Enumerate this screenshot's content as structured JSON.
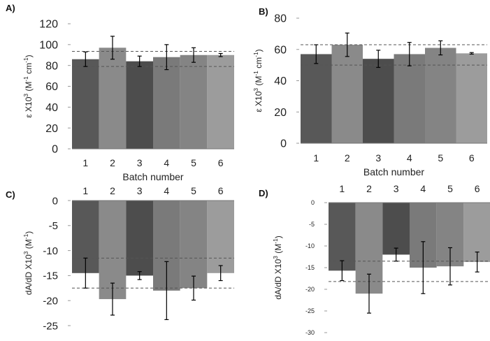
{
  "chart_data": [
    {
      "panel_label": "A)",
      "type": "bar",
      "categories": [
        "1",
        "2",
        "3",
        "4",
        "5",
        "6"
      ],
      "values": [
        86,
        97,
        84,
        88,
        90,
        90
      ],
      "errors": [
        7,
        11,
        5,
        12,
        7,
        1.5
      ],
      "ylabel_prefix": "ε X10",
      "ylabel_sup1": "3",
      "ylabel_mid": " (M",
      "ylabel_sup2": "-1",
      "ylabel_mid2": " cm",
      "ylabel_sup3": "-1",
      "ylabel_suffix": ")",
      "xlabel": "Batch number",
      "ylim": [
        0,
        120
      ],
      "yticks": [
        "0",
        "20",
        "40",
        "60",
        "80",
        "100",
        "120"
      ],
      "reference_lines": [
        93.5,
        79
      ],
      "bar_colors": [
        "#585858",
        "#8a8a8a",
        "#4d4d4d",
        "#7a7a7a",
        "#848484",
        "#9c9c9c"
      ],
      "grid": false
    },
    {
      "panel_label": "B)",
      "type": "bar",
      "categories": [
        "1",
        "2",
        "3",
        "4",
        "5",
        "6"
      ],
      "values": [
        57,
        63,
        54,
        57,
        61,
        57.5
      ],
      "errors": [
        6,
        7.5,
        5.5,
        7.5,
        4.5,
        0.5
      ],
      "ylabel_prefix": "ε X10",
      "ylabel_sup1": "3",
      "ylabel_mid": " (M",
      "ylabel_sup2": "-1",
      "ylabel_mid2": " cm",
      "ylabel_sup3": "-1",
      "ylabel_suffix": ")",
      "xlabel": "Batch number",
      "ylim": [
        0,
        80
      ],
      "yticks": [
        "0",
        "20",
        "40",
        "60",
        "80"
      ],
      "reference_lines": [
        63,
        50
      ],
      "bar_colors": [
        "#585858",
        "#8a8a8a",
        "#4d4d4d",
        "#7a7a7a",
        "#848484",
        "#9c9c9c"
      ],
      "grid": false
    },
    {
      "panel_label": "C)",
      "type": "bar",
      "categories": [
        "1",
        "2",
        "3",
        "4",
        "5",
        "6"
      ],
      "values": [
        -14.5,
        -19.7,
        -15,
        -18,
        -17.5,
        -14.5
      ],
      "errors": [
        3,
        3.2,
        0.8,
        5.8,
        2.4,
        1.5
      ],
      "ylabel_prefix": "dA/dD X10",
      "ylabel_sup1": "3",
      "ylabel_mid": " (M",
      "ylabel_sup2": "-1",
      "ylabel_suffix": ")",
      "ylim": [
        -25,
        0
      ],
      "yticks": [
        "-25",
        "-20",
        "-15",
        "-10",
        "-5",
        "0"
      ],
      "reference_lines": [
        -11.5,
        -17.5
      ],
      "bar_colors": [
        "#585858",
        "#8a8a8a",
        "#4d4d4d",
        "#7a7a7a",
        "#848484",
        "#9c9c9c"
      ],
      "grid": false
    },
    {
      "panel_label": "D)",
      "type": "bar",
      "categories": [
        "1",
        "2",
        "3",
        "4",
        "5",
        "6"
      ],
      "values": [
        -15.7,
        -21,
        -12,
        -15,
        -14.7,
        -13.7
      ],
      "errors": [
        2.3,
        4.5,
        1.5,
        6,
        4.3,
        2.3
      ],
      "ylabel_prefix": "dA/dD X10",
      "ylabel_sup1": "3",
      "ylabel_mid": " (M",
      "ylabel_sup2": "-1",
      "ylabel_suffix": ")",
      "ylim": [
        -30,
        0
      ],
      "yticks": [
        "-30",
        "-25",
        "-20",
        "-15",
        "-10",
        "-5",
        "0"
      ],
      "reference_lines": [
        -13.5,
        -18.2
      ],
      "bar_colors": [
        "#585858",
        "#8a8a8a",
        "#4d4d4d",
        "#7a7a7a",
        "#848484",
        "#9c9c9c"
      ],
      "grid": false
    }
  ]
}
